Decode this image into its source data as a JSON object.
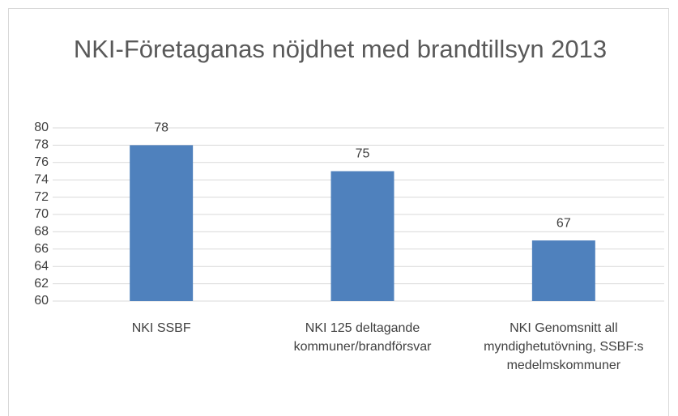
{
  "chart_data": {
    "type": "bar",
    "title": "NKI-Företaganas nöjdhet med brandtillsyn 2013",
    "categories": [
      "NKI SSBF",
      "NKI 125 deltagande kommuner/brandförsvar",
      "NKI Genomsnitt all myndighetutövning, SSBF:s medelmskommuner"
    ],
    "values": [
      78,
      75,
      67
    ],
    "color": "#4f81bd",
    "ylim": [
      60,
      80
    ],
    "yticks": [
      60,
      62,
      64,
      66,
      68,
      70,
      72,
      74,
      76,
      78,
      80
    ],
    "grid": true
  }
}
